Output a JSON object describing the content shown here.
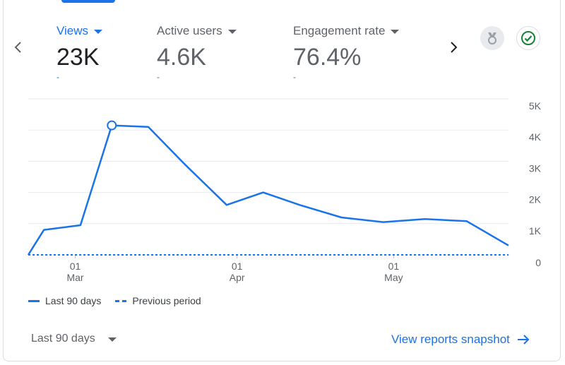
{
  "metrics": [
    {
      "label": "Views",
      "value": "23K",
      "change": "-"
    },
    {
      "label": "Active users",
      "value": "4.6K",
      "change": "-"
    },
    {
      "label": "Engagement rate",
      "value": "76.4%",
      "change": "-"
    }
  ],
  "icons": {
    "prev": "chevron-left-icon",
    "next": "chevron-right-icon",
    "insights": "insights-badge-icon",
    "status": "check-circle-icon"
  },
  "colors": {
    "accent": "#1a73e8",
    "grid": "#e8eaed",
    "text_muted": "#5f6368",
    "status_green": "#188038"
  },
  "chart_data": {
    "type": "line",
    "y_ticks": [
      "5K",
      "4K",
      "3K",
      "2K",
      "1K",
      "0"
    ],
    "ylim": [
      0,
      5000
    ],
    "x_ticks": [
      {
        "day": "01",
        "month": "Mar",
        "index": 9
      },
      {
        "day": "01",
        "month": "Apr",
        "index": 40
      },
      {
        "day": "01",
        "month": "May",
        "index": 70
      }
    ],
    "series": [
      {
        "name": "Last 90 days",
        "style": "solid",
        "points": [
          [
            0,
            0
          ],
          [
            3,
            800
          ],
          [
            10,
            950
          ],
          [
            16,
            4150
          ],
          [
            23,
            4100
          ],
          [
            30,
            2900
          ],
          [
            38,
            1600
          ],
          [
            45,
            2000
          ],
          [
            52,
            1600
          ],
          [
            60,
            1200
          ],
          [
            68,
            1050
          ],
          [
            76,
            1150
          ],
          [
            84,
            1080
          ],
          [
            92,
            300
          ]
        ],
        "highlight_index": 3
      },
      {
        "name": "Previous period",
        "style": "dashed",
        "points": [
          [
            0,
            0
          ],
          [
            92,
            0
          ]
        ]
      }
    ]
  },
  "footer": {
    "range_label": "Last 90 days",
    "snapshot_link": "View reports snapshot"
  }
}
